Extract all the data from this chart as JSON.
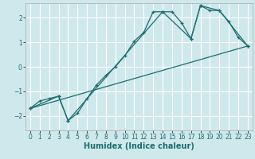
{
  "xlabel": "Humidex (Indice chaleur)",
  "xlim": [
    -0.5,
    23.5
  ],
  "ylim": [
    -2.6,
    2.6
  ],
  "xticks": [
    0,
    1,
    2,
    3,
    4,
    5,
    6,
    7,
    8,
    9,
    10,
    11,
    12,
    13,
    14,
    15,
    16,
    17,
    18,
    19,
    20,
    21,
    22,
    23
  ],
  "yticks": [
    -2,
    -1,
    0,
    1,
    2
  ],
  "background_color": "#cfe8ec",
  "grid_color": "#ffffff",
  "line_color": "#1a6e6e",
  "line1_x": [
    0,
    1,
    2,
    3,
    4,
    5,
    6,
    7,
    8,
    9,
    10,
    11,
    12,
    13,
    14,
    15,
    16,
    17,
    18,
    19,
    20,
    21,
    22,
    23
  ],
  "line1_y": [
    -1.7,
    -1.4,
    -1.3,
    -1.2,
    -2.2,
    -1.9,
    -1.3,
    -0.75,
    -0.35,
    0.0,
    0.45,
    1.05,
    1.4,
    2.25,
    2.25,
    2.25,
    1.8,
    1.15,
    2.5,
    2.3,
    2.3,
    1.85,
    1.2,
    0.85
  ],
  "line3_x": [
    0,
    23
  ],
  "line3_y": [
    -1.7,
    0.85
  ],
  "line4_x": [
    0,
    3,
    4,
    14,
    17,
    18,
    20,
    23
  ],
  "line4_y": [
    -1.7,
    -1.2,
    -2.2,
    2.25,
    1.15,
    2.5,
    2.3,
    0.85
  ]
}
